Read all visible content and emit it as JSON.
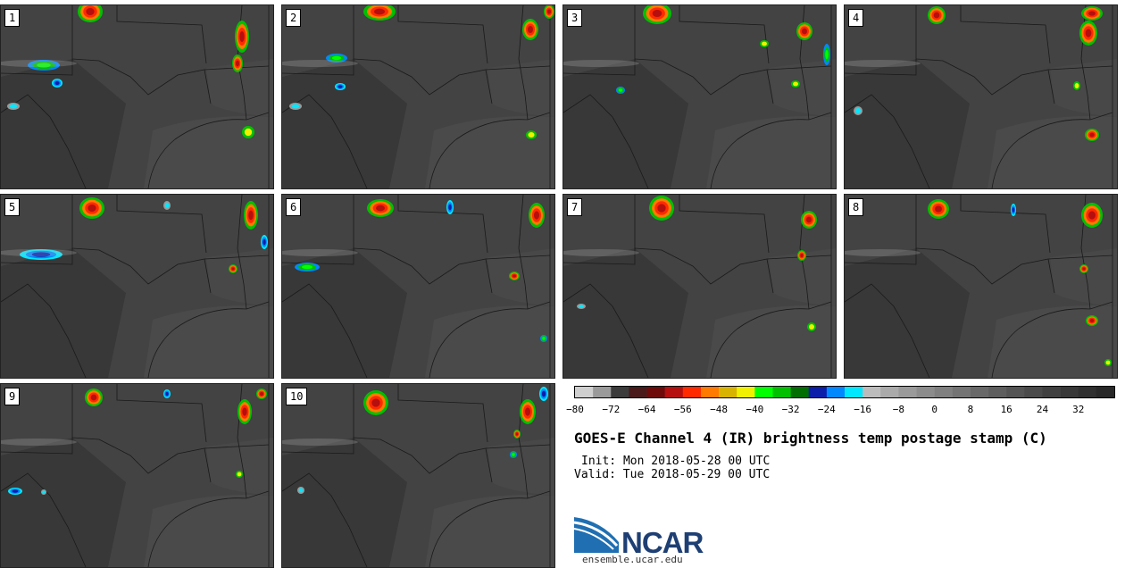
{
  "panels": [
    {
      "label": "1"
    },
    {
      "label": "2"
    },
    {
      "label": "3"
    },
    {
      "label": "4"
    },
    {
      "label": "5"
    },
    {
      "label": "6"
    },
    {
      "label": "7"
    },
    {
      "label": "8"
    },
    {
      "label": "9"
    },
    {
      "label": "10"
    }
  ],
  "colorbar": {
    "colors": [
      "#cfcfcf",
      "#9a9a9a",
      "#3c3c3c",
      "#4a1a1a",
      "#6e0a0a",
      "#b50f0f",
      "#ff2a00",
      "#ff7a00",
      "#d8b400",
      "#f0f000",
      "#00ff00",
      "#00c000",
      "#006e00",
      "#0a1eaa",
      "#0088ff",
      "#00e8ff",
      "#bcbcbc",
      "#aaaaaa",
      "#9a9a9a",
      "#8c8c8c",
      "#808080",
      "#747474",
      "#686868",
      "#5e5e5e",
      "#545454",
      "#4a4a4a",
      "#404040",
      "#383838",
      "#303030",
      "#282828"
    ],
    "ticks": [
      "−80",
      "−72",
      "−64",
      "−56",
      "−48",
      "−40",
      "−32",
      "−24",
      "−16",
      "−8",
      "0",
      "8",
      "16",
      "24",
      "32"
    ]
  },
  "title": "GOES-E Channel 4 (IR) brightness temp postage stamp (C)",
  "init": "Init: Mon 2018-05-28 00 UTC",
  "valid": "Valid: Tue 2018-05-29 00 UTC",
  "logo_text": "NCAR",
  "site": "ensemble.ucar.edu"
}
